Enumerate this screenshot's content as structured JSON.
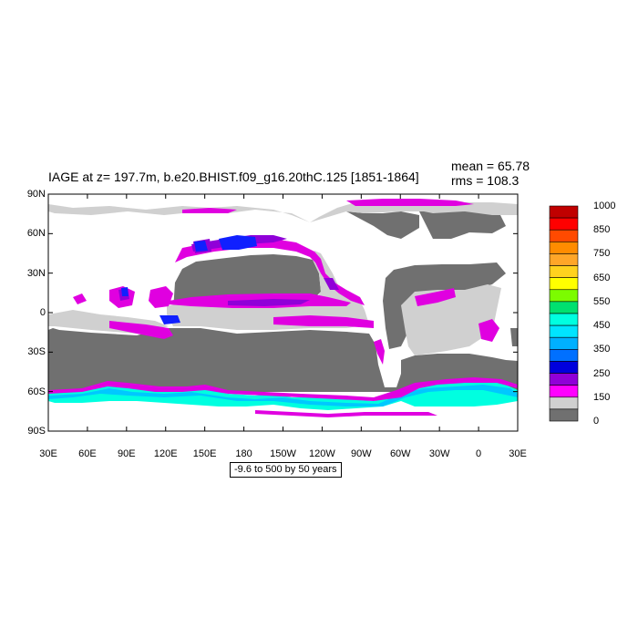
{
  "title": "IAGE at z= 197.7m, b.e20.BHIST.f09_g16.20thC.125 [1851-1864]",
  "stats": {
    "mean": "mean = 65.78",
    "rms": "rms = 108.3"
  },
  "contour_info": "-9.6 to 500 by 50 years",
  "x_ticks": [
    "30E",
    "60E",
    "90E",
    "120E",
    "150E",
    "180",
    "150W",
    "120W",
    "90W",
    "60W",
    "30W",
    "0",
    "30E"
  ],
  "y_ticks": [
    "90N",
    "60N",
    "30N",
    "0",
    "30S",
    "60S",
    "90S"
  ],
  "colorbar": {
    "labels": [
      "1000",
      "850",
      "750",
      "650",
      "550",
      "450",
      "350",
      "250",
      "150",
      "0"
    ],
    "colors": [
      "#c00000",
      "#ff0000",
      "#ff4a00",
      "#ff8c00",
      "#ffa628",
      "#ffd21e",
      "#ffff00",
      "#7cfc00",
      "#00e070",
      "#00ffe0",
      "#00e4ff",
      "#00b0ff",
      "#0070ff",
      "#0000dd",
      "#9000d8",
      "#ff00ff",
      "#d0d0d0",
      "#707070"
    ]
  },
  "map": {
    "land_color": "#ffffff",
    "low_age_color": "#707070",
    "light_gray_color": "#d0d0d0",
    "magenta_color": "#e000e0",
    "purple_color": "#9000d8",
    "blue_color": "#1020ff",
    "cyan_color": "#00ffe0",
    "sky_color": "#00c8ff"
  },
  "chart_data": {
    "type": "heatmap",
    "title": "IAGE at z= 197.7m, b.e20.BHIST.f09_g16.20thC.125 [1851-1864]",
    "xlim": [
      "30E",
      "30E"
    ],
    "ylim": [
      "90S",
      "90N"
    ],
    "contour_range": "-9.6 to 500 by 50 years",
    "mean": 65.78,
    "rms": 108.3
  }
}
